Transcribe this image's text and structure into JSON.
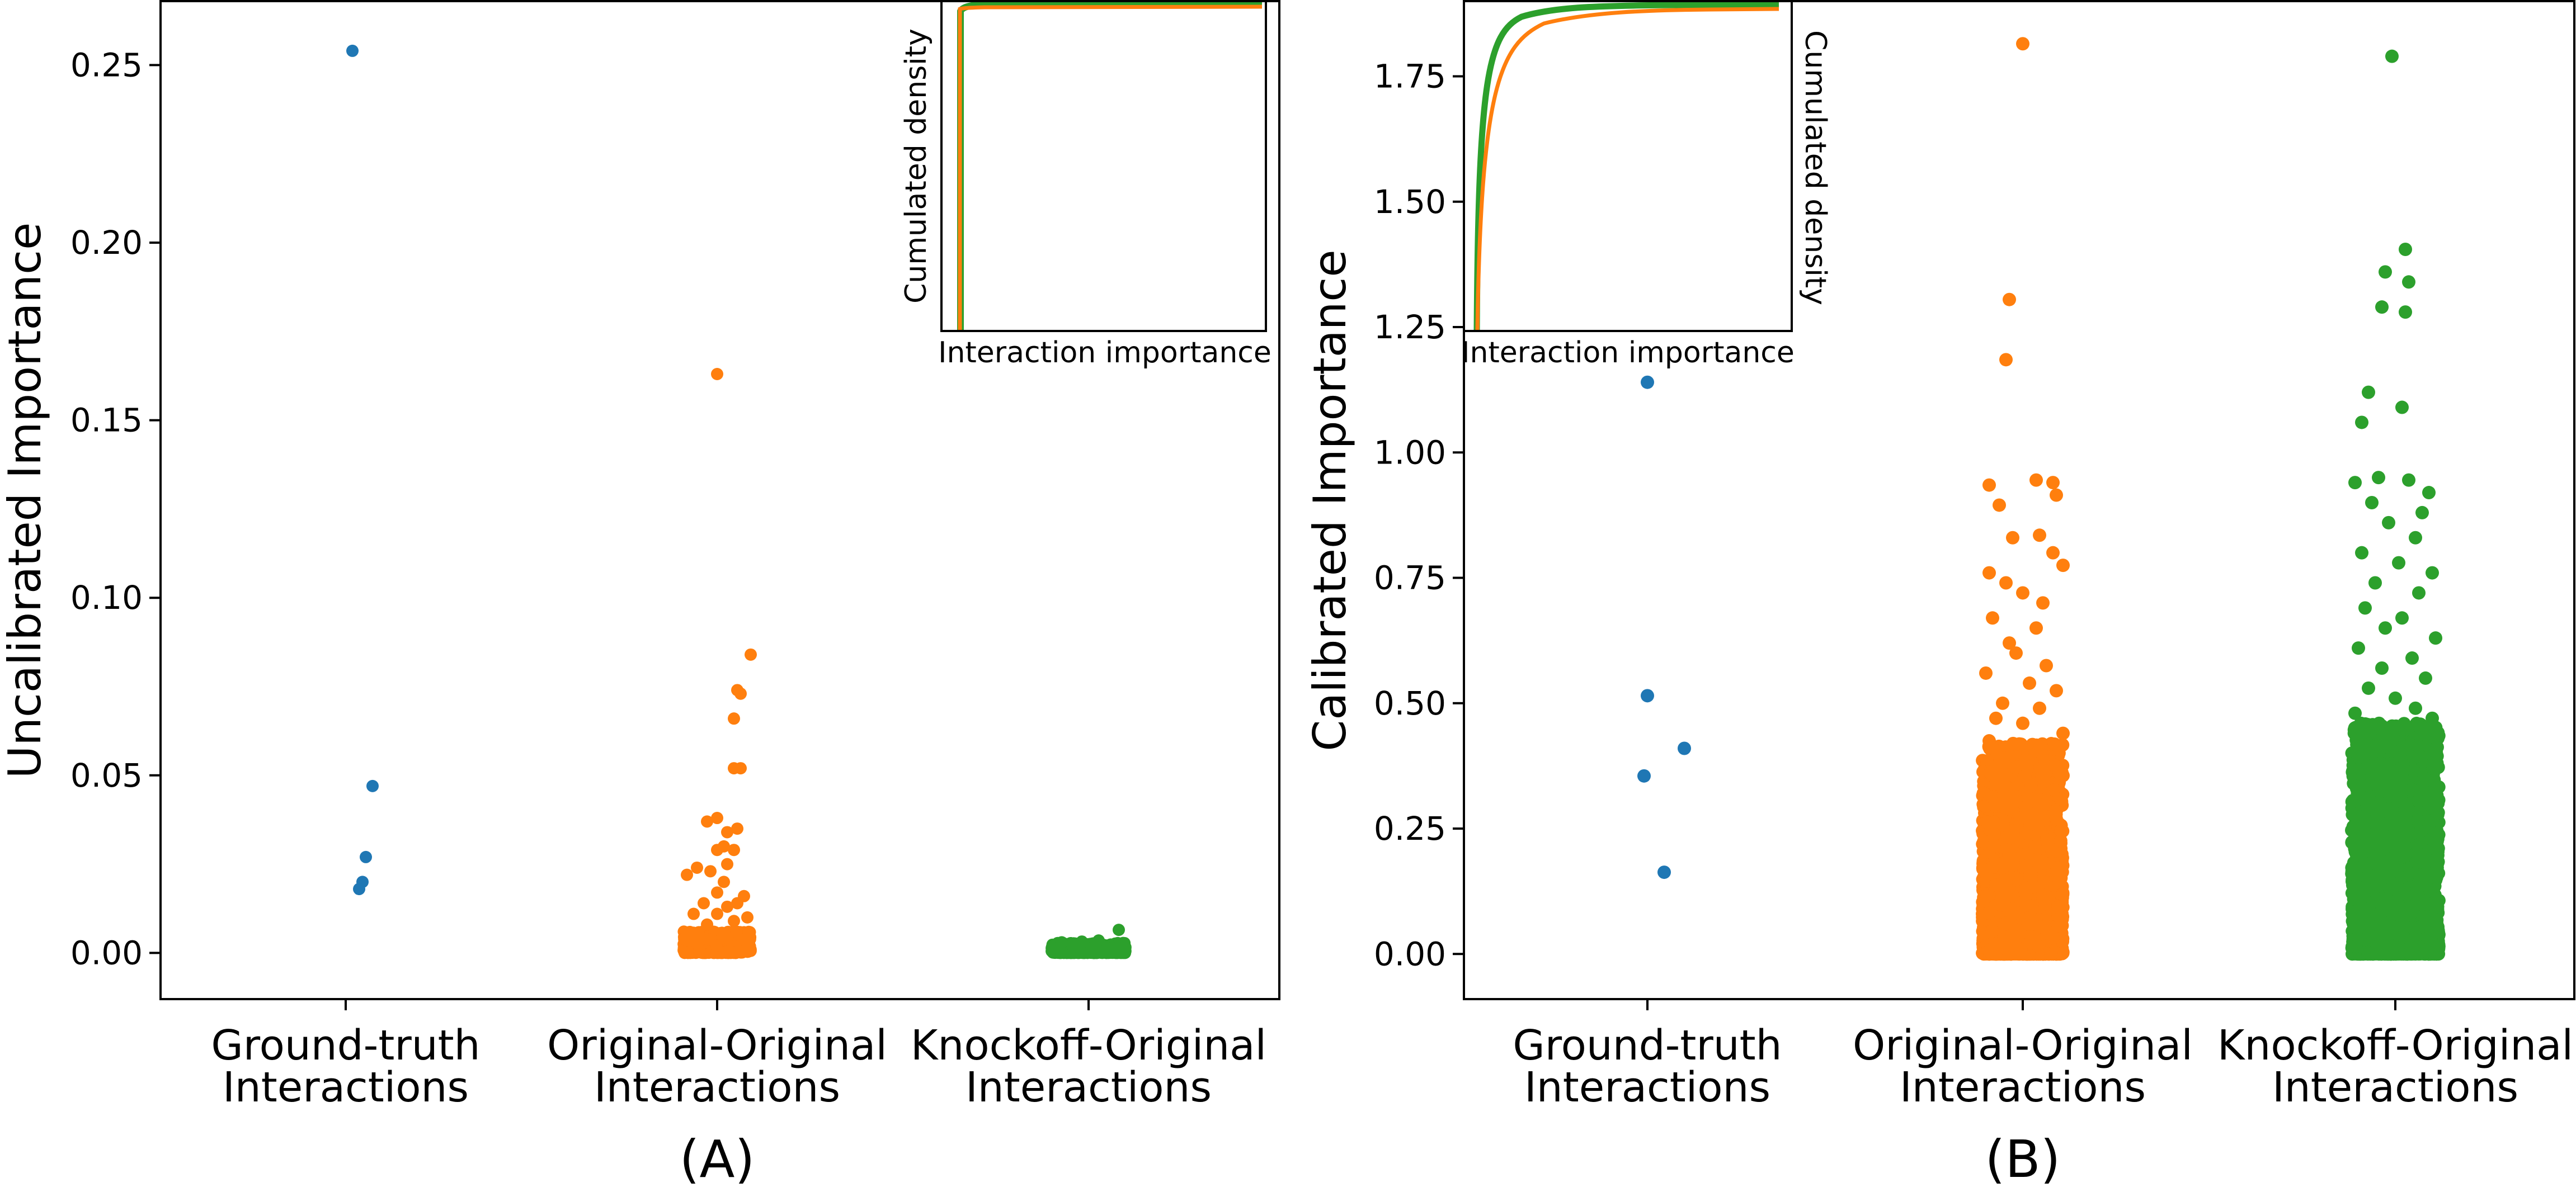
{
  "figure": {
    "panel_labels": [
      "(A)",
      "(B)"
    ]
  },
  "colors": {
    "ground_truth": "#1f77b4",
    "original_original": "#ff7f0e",
    "knockoff_original": "#2ca02c",
    "axis": "#000000",
    "background": "#ffffff"
  },
  "chart_data": [
    {
      "type": "scatter",
      "panel": "(A)",
      "ylabel": "Uncalibrated Importance",
      "ylim": [
        -0.013,
        0.268
      ],
      "yticks": [
        0.0,
        0.05,
        0.1,
        0.15,
        0.2,
        0.25
      ],
      "ytick_labels": [
        "0.00",
        "0.05",
        "0.10",
        "0.15",
        "0.20",
        "0.25"
      ],
      "categories": [
        [
          "Ground-truth",
          "Interactions"
        ],
        [
          "Original-Original",
          "Interactions"
        ],
        [
          "Knockoff-Original",
          "Interactions"
        ]
      ],
      "grid": false,
      "series": [
        {
          "key": "ground_truth",
          "category_index": 0,
          "points": [
            [
              0.02,
              0.254
            ],
            [
              0.08,
              0.047
            ],
            [
              0.06,
              0.027
            ],
            [
              0.05,
              0.02
            ],
            [
              0.04,
              0.018
            ]
          ]
        },
        {
          "key": "original_original",
          "category_index": 1,
          "points": [
            [
              0.0,
              0.163
            ],
            [
              0.1,
              0.084
            ],
            [
              0.06,
              0.074
            ],
            [
              0.07,
              0.073
            ],
            [
              0.05,
              0.066
            ],
            [
              0.05,
              0.052
            ],
            [
              0.07,
              0.052
            ],
            [
              -0.03,
              0.037
            ],
            [
              0.0,
              0.038
            ],
            [
              0.06,
              0.035
            ],
            [
              0.03,
              0.034
            ],
            [
              0.02,
              0.03
            ],
            [
              0.05,
              0.029
            ],
            [
              0.0,
              0.029
            ],
            [
              -0.06,
              0.024
            ],
            [
              -0.09,
              0.022
            ],
            [
              -0.02,
              0.023
            ],
            [
              0.03,
              0.025
            ],
            [
              0.02,
              0.02
            ],
            [
              0.0,
              0.017
            ],
            [
              -0.04,
              0.014
            ],
            [
              0.08,
              0.016
            ],
            [
              0.06,
              0.014
            ],
            [
              0.03,
              0.013
            ],
            [
              -0.07,
              0.011
            ],
            [
              0.0,
              0.011
            ],
            [
              0.05,
              0.009
            ],
            [
              -0.03,
              0.008
            ],
            [
              0.09,
              0.01
            ]
          ],
          "dense_band": {
            "count": 600,
            "y_min": 0.0,
            "y_max": 0.006,
            "x_spread": 0.1
          }
        },
        {
          "key": "knockoff_original",
          "category_index": 2,
          "points": [
            [
              0.09,
              0.0065
            ],
            [
              -0.08,
              0.003
            ],
            [
              0.03,
              0.0035
            ],
            [
              -0.02,
              0.0032
            ]
          ],
          "dense_band": {
            "count": 500,
            "y_min": 0.0,
            "y_max": 0.0028,
            "x_spread": 0.11
          }
        }
      ],
      "inset": {
        "xlabel": "Interaction importance",
        "ylabel": "Cumulated density",
        "lines": [
          "knockoff_original",
          "original_original"
        ]
      }
    },
    {
      "type": "scatter",
      "panel": "(B)",
      "ylabel": "Calibrated Importance",
      "ylim": [
        -0.09,
        1.9
      ],
      "yticks": [
        0.0,
        0.25,
        0.5,
        0.75,
        1.0,
        1.25,
        1.5,
        1.75
      ],
      "ytick_labels": [
        "0.00",
        "0.25",
        "0.50",
        "0.75",
        "1.00",
        "1.25",
        "1.50",
        "1.75"
      ],
      "categories": [
        [
          "Ground-truth",
          "Interactions"
        ],
        [
          "Original-Original",
          "Interactions"
        ],
        [
          "Knockoff-Original",
          "Interactions"
        ]
      ],
      "grid": false,
      "series": [
        {
          "key": "ground_truth",
          "category_index": 0,
          "points": [
            [
              0.0,
              1.14
            ],
            [
              0.0,
              0.515
            ],
            [
              -0.01,
              0.355
            ],
            [
              0.11,
              0.41
            ],
            [
              0.05,
              0.163
            ]
          ]
        },
        {
          "key": "original_original",
          "category_index": 1,
          "points": [
            [
              0.0,
              1.815
            ],
            [
              -0.04,
              1.305
            ],
            [
              -0.05,
              1.185
            ],
            [
              0.09,
              0.94
            ],
            [
              -0.1,
              0.935
            ],
            [
              0.04,
              0.945
            ],
            [
              0.1,
              0.915
            ],
            [
              -0.07,
              0.895
            ],
            [
              0.05,
              0.835
            ],
            [
              -0.03,
              0.83
            ],
            [
              0.09,
              0.8
            ],
            [
              0.12,
              0.775
            ],
            [
              -0.1,
              0.76
            ],
            [
              -0.05,
              0.74
            ],
            [
              0.0,
              0.72
            ],
            [
              0.06,
              0.7
            ],
            [
              -0.09,
              0.67
            ],
            [
              0.04,
              0.65
            ],
            [
              -0.04,
              0.62
            ],
            [
              -0.02,
              0.6
            ],
            [
              0.07,
              0.575
            ],
            [
              -0.11,
              0.56
            ],
            [
              0.02,
              0.54
            ],
            [
              0.1,
              0.525
            ],
            [
              -0.06,
              0.5
            ],
            [
              0.05,
              0.49
            ],
            [
              -0.08,
              0.47
            ],
            [
              0.0,
              0.46
            ],
            [
              0.12,
              0.44
            ],
            [
              -0.1,
              0.425
            ]
          ],
          "dense_band": {
            "count": 2600,
            "y_min": 0.0,
            "y_max": 0.42,
            "x_spread": 0.12,
            "skew": 2.2
          }
        },
        {
          "key": "knockoff_original",
          "category_index": 2,
          "points": [
            [
              -0.01,
              1.79
            ],
            [
              0.03,
              1.405
            ],
            [
              -0.03,
              1.36
            ],
            [
              0.04,
              1.34
            ],
            [
              0.03,
              1.28
            ],
            [
              -0.04,
              1.29
            ],
            [
              -0.08,
              1.12
            ],
            [
              -0.1,
              1.06
            ],
            [
              0.02,
              1.09
            ],
            [
              -0.05,
              0.95
            ],
            [
              0.04,
              0.945
            ],
            [
              -0.12,
              0.94
            ],
            [
              0.1,
              0.92
            ],
            [
              -0.07,
              0.9
            ],
            [
              0.08,
              0.88
            ],
            [
              -0.02,
              0.86
            ],
            [
              0.06,
              0.83
            ],
            [
              -0.1,
              0.8
            ],
            [
              0.01,
              0.78
            ],
            [
              0.11,
              0.76
            ],
            [
              -0.06,
              0.74
            ],
            [
              0.07,
              0.72
            ],
            [
              -0.09,
              0.69
            ],
            [
              0.02,
              0.67
            ],
            [
              -0.03,
              0.65
            ],
            [
              0.12,
              0.63
            ],
            [
              -0.11,
              0.61
            ],
            [
              0.05,
              0.59
            ],
            [
              -0.04,
              0.57
            ],
            [
              0.09,
              0.55
            ],
            [
              -0.08,
              0.53
            ],
            [
              0.0,
              0.51
            ],
            [
              0.06,
              0.49
            ],
            [
              -0.12,
              0.48
            ],
            [
              0.11,
              0.47
            ]
          ],
          "dense_band": {
            "count": 3000,
            "y_min": 0.0,
            "y_max": 0.46,
            "x_spread": 0.13,
            "skew": 2.0
          }
        }
      ],
      "inset": {
        "xlabel": "Interaction importance",
        "ylabel": "Cumulated density",
        "lines": [
          "knockoff_original",
          "original_original"
        ]
      }
    }
  ]
}
